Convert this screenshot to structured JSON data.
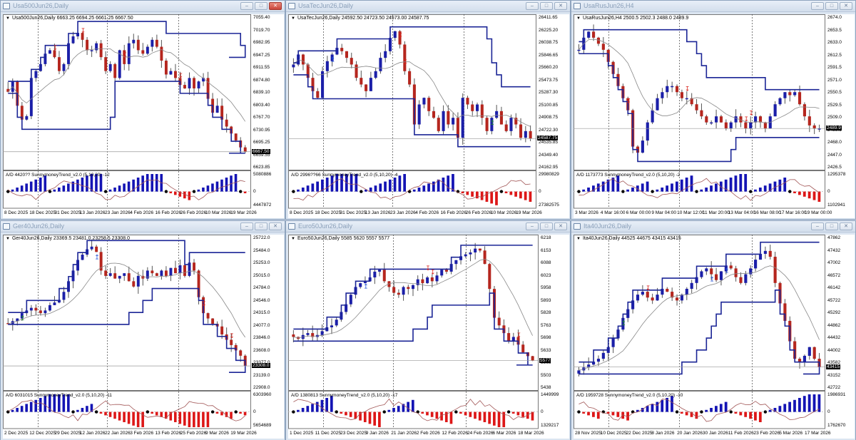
{
  "colors": {
    "bull": "#1b1fa8",
    "bear": "#b5261e",
    "wick": "#555555",
    "channel": "#1b2596",
    "ma": "#888888",
    "ad_line": "#a25757",
    "hist_pos": "#1414b4",
    "hist_neg": "#dd1717",
    "dot": "#000000",
    "arrow_up_blue": "#1f4fd8",
    "arrow_down_red": "#d9231b",
    "arrow_up_green": "#1e8a2f",
    "arrow_up_red": "#e25a4a"
  },
  "windows": [
    {
      "title": "Usa500Jun26,Daily",
      "info": "Usa500Jun26,Daily  6663.25 6694.25 6661.25 6667.50",
      "price_axis": [
        "7055.40",
        "7019.70",
        "6982.95",
        "6947.25",
        "6911.55",
        "6874.80",
        "6839.10",
        "6803.40",
        "6767.70",
        "6730.95",
        "6695.25",
        "6659.55",
        "6623.85"
      ],
      "price_max": 7055.4,
      "price_min": 6623.85,
      "last_price": "6667.50",
      "last_value": 6667.5,
      "indicator_info": "A/D 4420??  SunnymoneyTrend_v2.0  (5,10,20)  -12",
      "ind_axis": [
        "5080886",
        "0",
        "4447872"
      ],
      "dates": [
        "8 Dec 2025",
        "18 Dec 2025",
        "31 Dec 2025",
        "13 Jan 2026",
        "23 Jan 2026",
        "4 Feb 2026",
        "16 Feb 2026",
        "26 Feb 2026",
        "10 Mar 2026",
        "19 Mar 2026"
      ],
      "close_active": true
    },
    {
      "title": "UsaTecJun26,Daily",
      "info": "UsaTecJun26,Daily  24592.50 24723.50 24573.00 24587.75",
      "price_axis": [
        "26411.65",
        "26225.20",
        "26038.75",
        "25846.65",
        "25660.20",
        "25473.75",
        "25287.30",
        "25100.85",
        "24908.75",
        "24722.30",
        "24535.85",
        "24349.40",
        "24162.95"
      ],
      "price_max": 26411.65,
      "price_min": 24162.95,
      "last_price": "24587.75",
      "last_value": 24587.75,
      "indicator_info": "A/D 2996??66  SunnymoneyTrend_v2.0  (5,10,20)  -4",
      "ind_axis": [
        "29980829",
        "0",
        "27382575"
      ],
      "dates": [
        "8 Dec 2025",
        "18 Dec 2025",
        "31 Dec 2025",
        "13 Jan 2026",
        "23 Jan 2026",
        "4 Feb 2026",
        "16 Feb 2026",
        "26 Feb 2026",
        "10 Mar 2026",
        "19 Mar 2026"
      ],
      "close_active": false
    },
    {
      "title": "UsaRusJun26,H4",
      "info": "UsaRusJun26,H4  2500.5 2502.3 2488.0 2489.9",
      "price_axis": [
        "2674.0",
        "2653.5",
        "2633.0",
        "2612.5",
        "2591.5",
        "2571.0",
        "2550.5",
        "2529.5",
        "2509.0",
        "2489.9",
        "2468.0",
        "2447.0",
        "2426.5"
      ],
      "price_max": 2674.0,
      "price_min": 2426.5,
      "last_price": "2489.9",
      "last_value": 2489.9,
      "indicator_info": "A/D 1173773  SunnymoneyTrend_v2.0  (5,10,20)  -2",
      "ind_axis": [
        "1295378",
        "0",
        "1102941"
      ],
      "dates": [
        "3 Mar 2026",
        "4 Mar 16:00",
        "6 Mar 00:00",
        "9 Mar 04:00",
        "10 Mar 12:00",
        "11 Mar 20:00",
        "13 Mar 04:00",
        "16 Mar 08:00",
        "17 Mar 16:00",
        "19 Mar 00:00"
      ],
      "close_active": false
    },
    {
      "title": "Ger40Jun26,Daily",
      "info": "Ger40Jun26,Daily  23369.5 23481.0 23258.5 23308.0",
      "price_axis": [
        "25722.0",
        "25484.0",
        "25253.0",
        "25015.0",
        "24784.0",
        "24546.0",
        "24315.0",
        "24077.0",
        "23846.0",
        "23608.0",
        "23377.0",
        "23139.0",
        "22908.0"
      ],
      "price_max": 25722.0,
      "price_min": 22908.0,
      "last_price": "23308.0",
      "last_value": 23308.0,
      "indicator_info": "A/D 6031015  SunnymoneyTrend_v2.0  (5,10,20)  -11",
      "ind_axis": [
        "6303960",
        "0",
        "5654689"
      ],
      "dates": [
        "2 Dec 2025",
        "12 Dec 2025",
        "29 Dec 2025",
        "12 Jan 2026",
        "22 Jan 2026",
        "3 Feb 2026",
        "13 Feb 2026",
        "25 Feb 2026",
        "9 Mar 2026",
        "19 Mar 2026"
      ],
      "close_active": false
    },
    {
      "title": "Euro50Jun26,Daily",
      "info": "Euro50Jun26,Daily  5585 5620 5557 5577",
      "price_axis": [
        "6218",
        "6153",
        "6088",
        "6023",
        "5958",
        "5893",
        "5828",
        "5763",
        "5698",
        "5633",
        "5568",
        "5503",
        "5438"
      ],
      "price_max": 6218,
      "price_min": 5438,
      "last_price": "5577",
      "last_value": 5577,
      "indicator_info": "A/D 1380813  SunnymoneyTrend_v2.0  (5,10,20)  -17",
      "ind_axis": [
        "1449999",
        "0",
        "1329217"
      ],
      "dates": [
        "1 Dec 2025",
        "11 Dec 2025",
        "23 Dec 2025",
        "9 Jan 2026",
        "21 Jan 2026",
        "2 Feb 2026",
        "12 Feb 2026",
        "24 Feb 2026",
        "6 Mar 2026",
        "18 Mar 2026"
      ],
      "close_active": false
    },
    {
      "title": "Ita40Jun26,Daily",
      "info": "Ita40Jun26,Daily  44525 44675 43415 43415",
      "price_axis": [
        "47862",
        "47432",
        "47002",
        "46572",
        "46142",
        "45722",
        "45292",
        "44862",
        "44432",
        "44002",
        "43582",
        "43152",
        "42722"
      ],
      "price_max": 47862,
      "price_min": 42722,
      "last_price": "43415",
      "last_value": 43415,
      "indicator_info": "A/D 1959728  SunnymoneyTrend_v2.0  (5,10,20)  -10",
      "ind_axis": [
        "1986931",
        "0",
        "1762670"
      ],
      "dates": [
        "28 Nov 2025",
        "10 Dec 2025",
        "22 Dec 2025",
        "8 Jan 2026",
        "20 Jan 2026",
        "30 Jan 2026",
        "11 Feb 2026",
        "23 Feb 2026",
        "5 Mar 2026",
        "17 Mar 2026"
      ],
      "close_active": false
    }
  ],
  "chart_data": [
    {
      "type": "candlestick",
      "title": "Usa500Jun26,Daily",
      "ohlc_last": {
        "open": 6663.25,
        "high": 6694.25,
        "low": 6661.25,
        "close": 6667.5
      },
      "ylim": [
        6623.85,
        7055.4
      ],
      "x_ticks": [
        "8 Dec 2025",
        "18 Dec 2025",
        "31 Dec 2025",
        "13 Jan 2026",
        "23 Jan 2026",
        "4 Feb 2026",
        "16 Feb 2026",
        "26 Feb 2026",
        "10 Mar 2026",
        "19 Mar 2026"
      ],
      "close_path": [
        6840,
        6870,
        6800,
        6760,
        6770,
        6880,
        6900,
        6920,
        6950,
        6960,
        6940,
        6900,
        6920,
        6980,
        7000,
        7010,
        6990,
        6960,
        6960,
        6980,
        6940,
        6900,
        6920,
        6880,
        6960,
        6920,
        6980,
        6990,
        6960,
        6950,
        6970,
        6990,
        6970,
        6930,
        6890,
        6900,
        6880,
        6860,
        6850,
        6880,
        6850,
        6870,
        6880,
        6820,
        6780,
        6800,
        6760,
        6740,
        6720,
        6700,
        6680,
        6667
      ],
      "indicator": {
        "name": "SunnymoneyTrend_v2.0 (5,10,20)",
        "value": -12,
        "range": [
          4447872,
          5080886
        ]
      }
    },
    {
      "type": "candlestick",
      "title": "UsaTecJun26,Daily",
      "ohlc_last": {
        "open": 24592.5,
        "high": 24723.5,
        "low": 24573.0,
        "close": 24587.75
      },
      "ylim": [
        24162.95,
        26411.65
      ],
      "x_ticks": [
        "8 Dec 2025",
        "18 Dec 2025",
        "31 Dec 2025",
        "13 Jan 2026",
        "23 Jan 2026",
        "4 Feb 2026",
        "16 Feb 2026",
        "26 Feb 2026",
        "10 Mar 2026",
        "19 Mar 2026"
      ],
      "close_path": [
        25700,
        25850,
        25700,
        25500,
        25300,
        25200,
        25600,
        25750,
        25850,
        25950,
        25900,
        25800,
        25700,
        25500,
        25400,
        25300,
        25500,
        25600,
        25800,
        25900,
        26100,
        26200,
        26000,
        25600,
        25400,
        24800,
        25100,
        25200,
        25000,
        24900,
        24700,
        25000,
        24800,
        24900,
        24600,
        25200,
        25100,
        25000,
        25100,
        24900,
        24700,
        24900,
        25000,
        24800,
        24700,
        24900,
        24800,
        24600,
        24700,
        24588
      ],
      "indicator": {
        "name": "SunnymoneyTrend_v2.0 (5,10,20)",
        "value": -4,
        "range": [
          27382575,
          29980829
        ]
      }
    },
    {
      "type": "candlestick",
      "title": "UsaRusJun26,H4",
      "ohlc_last": {
        "open": 2500.5,
        "high": 2502.3,
        "low": 2488.0,
        "close": 2489.9
      },
      "ylim": [
        2426.5,
        2674.0
      ],
      "x_ticks": [
        "3 Mar 2026",
        "4 Mar 16:00",
        "6 Mar 00:00",
        "9 Mar 04:00",
        "10 Mar 12:00",
        "11 Mar 20:00",
        "13 Mar 04:00",
        "16 Mar 08:00",
        "17 Mar 16:00",
        "19 Mar 00:00"
      ],
      "close_path": [
        2620,
        2640,
        2650,
        2640,
        2630,
        2620,
        2600,
        2580,
        2560,
        2540,
        2520,
        2460,
        2450,
        2470,
        2500,
        2520,
        2540,
        2550,
        2560,
        2560,
        2550,
        2540,
        2540,
        2530,
        2520,
        2510,
        2500,
        2500,
        2510,
        2500,
        2490,
        2500,
        2510,
        2500,
        2490,
        2500,
        2510,
        2500,
        2490,
        2510,
        2530,
        2540,
        2550,
        2545,
        2550,
        2530,
        2510,
        2495,
        2490,
        2490
      ],
      "indicator": {
        "name": "SunnymoneyTrend_v2.0 (5,10,20)",
        "value": -2,
        "range": [
          1102941,
          1295378
        ]
      }
    },
    {
      "type": "candlestick",
      "title": "Ger40Jun26,Daily",
      "ohlc_last": {
        "open": 23369.5,
        "high": 23481.0,
        "low": 23258.5,
        "close": 23308.0
      },
      "ylim": [
        22908.0,
        25722.0
      ],
      "x_ticks": [
        "2 Dec 2025",
        "12 Dec 2025",
        "29 Dec 2025",
        "12 Jan 2026",
        "22 Jan 2026",
        "3 Feb 2026",
        "13 Feb 2026",
        "25 Feb 2026",
        "9 Mar 2026",
        "19 Mar 2026"
      ],
      "close_path": [
        24100,
        24150,
        24200,
        24300,
        24350,
        24400,
        24350,
        24300,
        24350,
        24450,
        24500,
        24550,
        24700,
        24900,
        25100,
        25300,
        25400,
        25500,
        25550,
        25450,
        25100,
        25000,
        25050,
        24950,
        25000,
        25050,
        24900,
        24800,
        25000,
        24950,
        25100,
        25050,
        25000,
        25100,
        25000,
        25150,
        25050,
        25200,
        25000,
        25250,
        25100,
        24600,
        24300,
        24200,
        24100,
        24050,
        23900,
        23800,
        23700,
        23600,
        23500,
        23308
      ],
      "indicator": {
        "name": "SunnymoneyTrend_v2.0 (5,10,20)",
        "value": -11,
        "range": [
          5654689,
          6303960
        ]
      }
    },
    {
      "type": "candlestick",
      "title": "Euro50Jun26,Daily",
      "ohlc_last": {
        "open": 5585,
        "high": 5620,
        "low": 5557,
        "close": 5577
      },
      "ylim": [
        5438,
        6218
      ],
      "x_ticks": [
        "1 Dec 2025",
        "11 Dec 2025",
        "23 Dec 2025",
        "9 Jan 2026",
        "21 Jan 2026",
        "2 Feb 2026",
        "12 Feb 2026",
        "24 Feb 2026",
        "6 Mar 2026",
        "18 Mar 2026"
      ],
      "close_path": [
        5700,
        5690,
        5710,
        5720,
        5700,
        5710,
        5730,
        5750,
        5760,
        5790,
        5830,
        5870,
        5920,
        5960,
        5980,
        5990,
        6010,
        6040,
        6050,
        5990,
        5960,
        5930,
        5920,
        5960,
        5950,
        5970,
        6000,
        5980,
        6010,
        5990,
        6020,
        6050,
        6040,
        6080,
        6100,
        6120,
        6130,
        6140,
        6160,
        6150,
        6080,
        5950,
        5800,
        5760,
        5720,
        5680,
        5700,
        5660,
        5620,
        5600,
        5577
      ],
      "indicator": {
        "name": "SunnymoneyTrend_v2.0 (5,10,20)",
        "value": -17,
        "range": [
          1329217,
          1449999
        ]
      }
    },
    {
      "type": "candlestick",
      "title": "Ita40Jun26,Daily",
      "ohlc_last": {
        "open": 44525,
        "high": 44675,
        "low": 43415,
        "close": 43415
      },
      "ylim": [
        42722,
        47862
      ],
      "x_ticks": [
        "28 Nov 2025",
        "10 Dec 2025",
        "22 Dec 2025",
        "8 Jan 2026",
        "20 Jan 2026",
        "30 Jan 2026",
        "11 Feb 2026",
        "23 Feb 2026",
        "5 Mar 2026",
        "17 Mar 2026"
      ],
      "close_path": [
        43300,
        43400,
        43500,
        43600,
        43700,
        43900,
        44100,
        44400,
        44700,
        45100,
        45400,
        45700,
        45900,
        46000,
        45800,
        45700,
        45900,
        46100,
        46000,
        45800,
        45700,
        45900,
        46100,
        46300,
        46500,
        46700,
        46800,
        46600,
        46400,
        46700,
        46900,
        46800,
        46500,
        46300,
        46600,
        46800,
        47100,
        47300,
        47400,
        47200,
        46300,
        45600,
        45000,
        44300,
        43700,
        43600,
        43800,
        44100,
        43700,
        43415
      ],
      "indicator": {
        "name": "SunnymoneyTrend_v2.0 (5,10,20)",
        "value": -10,
        "range": [
          1762670,
          1986931
        ]
      }
    }
  ]
}
